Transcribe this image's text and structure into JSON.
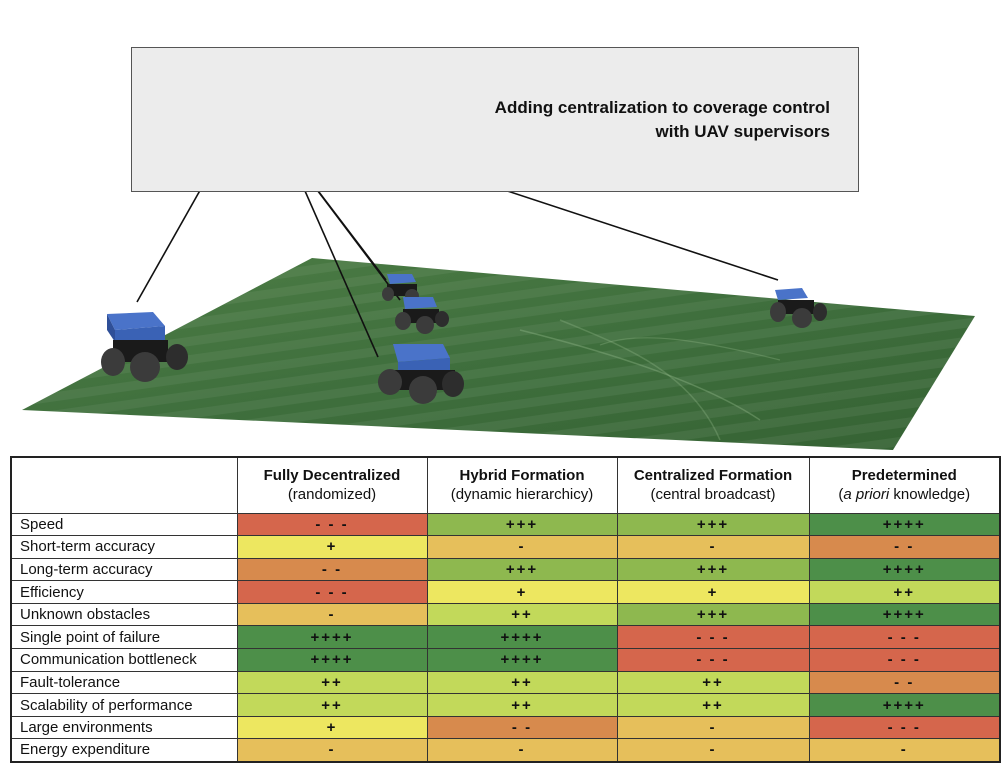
{
  "caption": {
    "line1": "Adding centralization to coverage control",
    "line2": "with UAV supervisors"
  },
  "colors": {
    "---": "#d5664c",
    "--": "#d78a4d",
    "-": "#e6bf5b",
    "+": "#ede760",
    "++": "#c2d95a",
    "+++": "#8eb84f",
    "++++": "#4d8f49"
  },
  "table": {
    "columns": [
      {
        "title": "Fully Decentralized",
        "sub_pre": "(randomized)",
        "sub_em": "",
        "sub_post": ""
      },
      {
        "title": "Hybrid Formation",
        "sub_pre": "(dynamic hierarchicy)",
        "sub_em": "",
        "sub_post": ""
      },
      {
        "title": "Centralized Formation",
        "sub_pre": "(central broadcast)",
        "sub_em": "",
        "sub_post": ""
      },
      {
        "title": "Predetermined",
        "sub_pre": "(",
        "sub_em": "a priori",
        "sub_post": " knowledge)"
      }
    ],
    "rows": [
      {
        "label": "Speed",
        "values": [
          "- - -",
          "+++",
          "+++",
          "++++"
        ]
      },
      {
        "label": "Short-term accuracy",
        "values": [
          "+",
          "-",
          "-",
          "- -"
        ]
      },
      {
        "label": "Long-term accuracy",
        "values": [
          "- -",
          "+++",
          "+++",
          "++++"
        ]
      },
      {
        "label": "Efficiency",
        "values": [
          "- - -",
          "+",
          "+",
          "++"
        ]
      },
      {
        "label": "Unknown obstacles",
        "values": [
          "-",
          "++",
          "+++",
          "++++"
        ]
      },
      {
        "label": "Single point of failure",
        "values": [
          "++++",
          "++++",
          "- - -",
          "- - -"
        ]
      },
      {
        "label": "Communication bottleneck",
        "values": [
          "++++",
          "++++",
          "- - -",
          "- - -"
        ]
      },
      {
        "label": "Fault-tolerance",
        "values": [
          "++",
          "++",
          "++",
          "- -"
        ]
      },
      {
        "label": "Scalability of performance",
        "values": [
          "++",
          "++",
          "++",
          "++++"
        ]
      },
      {
        "label": "Large environments",
        "values": [
          "+",
          "- -",
          "-",
          "- - -"
        ]
      },
      {
        "label": "Energy expenditure",
        "values": [
          "-",
          "-",
          "-",
          "-"
        ]
      }
    ]
  }
}
